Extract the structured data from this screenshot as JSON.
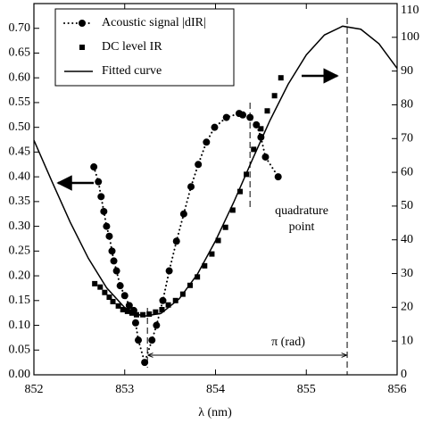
{
  "chart_data": {
    "type": "line",
    "x_label": "λ (nm)",
    "xlim": [
      852,
      856
    ],
    "xticks": [
      852,
      853,
      854,
      855,
      856
    ],
    "ylim": [
      0,
      0.75
    ],
    "yticks": [
      {
        "value": 0,
        "label": "0.00"
      },
      {
        "value": 0.05,
        "label": "0.05"
      },
      {
        "value": 0.1,
        "label": "0.10"
      },
      {
        "value": 0.15,
        "label": "0.15"
      },
      {
        "value": 0.2,
        "label": "0.20"
      },
      {
        "value": 0.25,
        "label": "0.25"
      },
      {
        "value": 0.3,
        "label": "0.30"
      },
      {
        "value": 0.35,
        "label": "0.35"
      },
      {
        "value": 0.4,
        "label": "0.40"
      },
      {
        "value": 0.45,
        "label": "0.45"
      },
      {
        "value": 0.5,
        "label": "0.50"
      },
      {
        "value": 0.55,
        "label": "0.55"
      },
      {
        "value": 0.6,
        "label": "0.60"
      },
      {
        "value": 0.65,
        "label": "0.65"
      },
      {
        "value": 0.7,
        "label": "0.70"
      }
    ],
    "y2lim": [
      0,
      110
    ],
    "y2ticks": [
      0,
      10,
      20,
      30,
      40,
      50,
      60,
      70,
      80,
      90,
      100,
      110
    ],
    "legend": "upper left",
    "annotations": [
      "quadrature point",
      "π (rad)"
    ],
    "series": [
      {
        "name": "Acoustic signal |dIR|",
        "color": "#000000",
        "marker": "circle",
        "line": "dotted",
        "x": [
          852.66,
          852.71,
          852.74,
          852.77,
          852.8,
          852.83,
          852.86,
          852.88,
          852.91,
          852.95,
          853.0,
          853.05,
          853.1,
          853.12,
          853.15,
          853.22,
          853.3,
          853.35,
          853.42,
          853.49,
          853.57,
          853.65,
          853.73,
          853.81,
          853.9,
          853.99,
          854.12,
          854.26,
          854.3,
          854.38,
          854.45,
          854.5,
          854.55,
          854.69
        ],
        "values": [
          0.42,
          0.39,
          0.36,
          0.33,
          0.3,
          0.28,
          0.25,
          0.23,
          0.21,
          0.18,
          0.16,
          0.14,
          0.13,
          0.105,
          0.07,
          0.025,
          0.07,
          0.1,
          0.15,
          0.21,
          0.27,
          0.325,
          0.38,
          0.425,
          0.47,
          0.5,
          0.52,
          0.528,
          0.525,
          0.52,
          0.505,
          0.48,
          0.44,
          0.4
        ]
      },
      {
        "name": "DC level IR",
        "color": "#000000",
        "marker": "square",
        "line": "none",
        "axis": "y2",
        "x": [
          852.67,
          852.73,
          852.78,
          852.83,
          852.87,
          852.93,
          852.98,
          853.03,
          853.08,
          853.13,
          853.2,
          853.27,
          853.34,
          853.41,
          853.48,
          853.56,
          853.64,
          853.72,
          853.8,
          853.88,
          853.96,
          854.03,
          854.11,
          854.19,
          854.27,
          854.34,
          854.42,
          854.5,
          854.57,
          854.65,
          854.72
        ],
        "values": [
          27,
          26,
          24.4,
          23,
          21.7,
          20.4,
          19.3,
          18.8,
          18.3,
          17.8,
          17.8,
          18,
          18.6,
          19.3,
          20.7,
          22,
          23.9,
          26.5,
          29,
          32.3,
          35.8,
          39.8,
          43.7,
          48.8,
          54.3,
          59.4,
          66.8,
          72.9,
          78.2,
          82.7,
          88
        ]
      },
      {
        "name": "Fitted curve",
        "color": "#000000",
        "marker": "none",
        "line": "solid",
        "axis": "y2",
        "x": [
          852,
          852.2,
          852.4,
          852.6,
          852.8,
          853,
          853.2,
          853.4,
          853.6,
          853.8,
          854,
          854.2,
          854.4,
          854.6,
          854.8,
          855,
          855.2,
          855.4,
          855.6,
          855.8,
          856
        ],
        "values": [
          69.5,
          57.2,
          45.2,
          34.5,
          25.8,
          19.9,
          17.3,
          18.2,
          22.5,
          29.8,
          39.7,
          51.1,
          63.4,
          75.4,
          86.1,
          94.8,
          100.7,
          103.3,
          102.4,
          98.1,
          90.8
        ]
      }
    ]
  }
}
